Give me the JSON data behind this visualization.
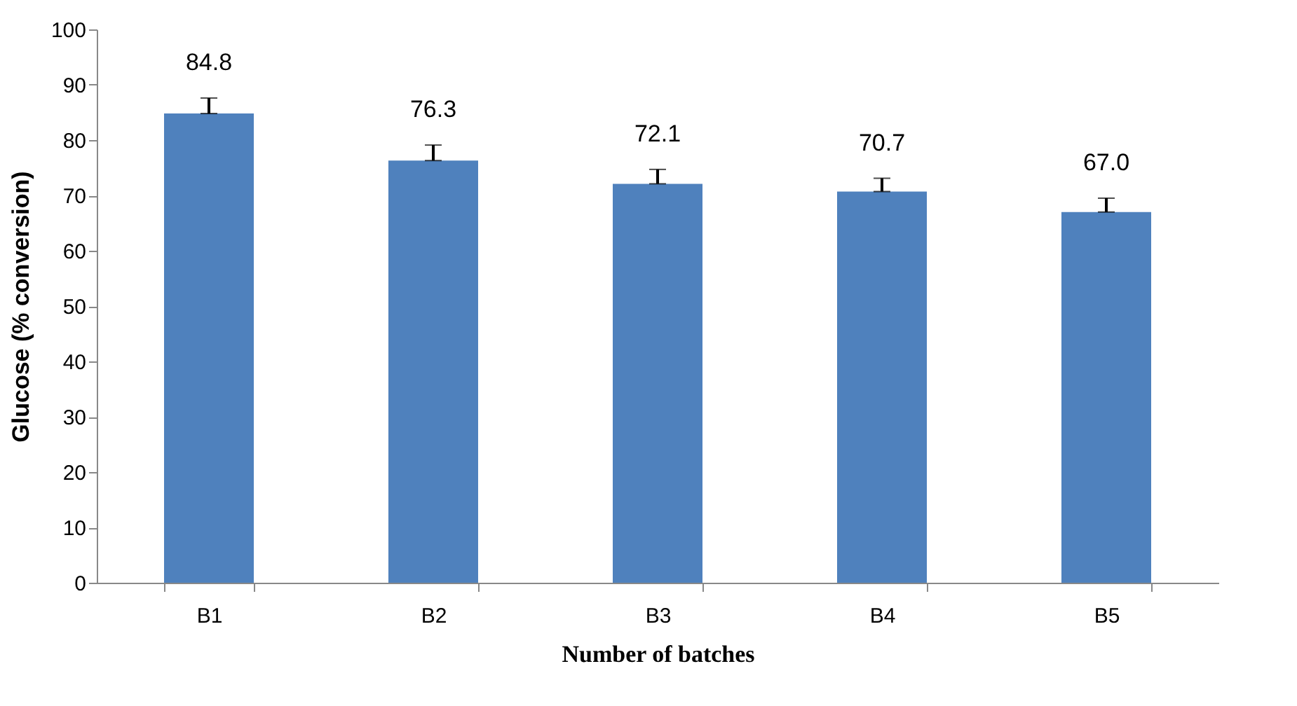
{
  "chart_data": {
    "type": "bar",
    "xlabel": "Number of batches",
    "ylabel": "Glucose (% conversion)",
    "categories": [
      "B1",
      "B2",
      "B3",
      "B4",
      "B5"
    ],
    "values": [
      84.8,
      76.3,
      72.1,
      70.7,
      67.0
    ],
    "value_labels": [
      "84.8",
      "76.3",
      "72.1",
      "70.7",
      "67.0"
    ],
    "errors": [
      [
        84.8,
        87.6
      ],
      [
        76.3,
        79.1
      ],
      [
        72.1,
        74.7
      ],
      [
        70.7,
        73.1
      ],
      [
        67.0,
        69.5
      ]
    ],
    "color": "#4f81bd",
    "ylim": [
      0,
      100
    ],
    "yticks": [
      0,
      10,
      20,
      30,
      40,
      50,
      60,
      70,
      80,
      90,
      100
    ],
    "grid": false
  }
}
